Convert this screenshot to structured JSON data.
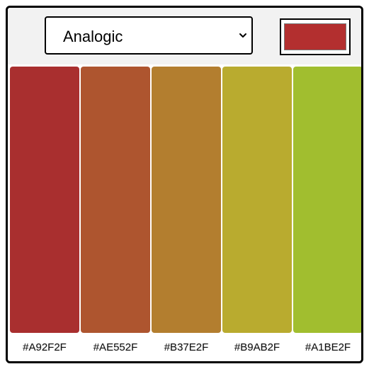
{
  "header": {
    "scheme_select": {
      "selected": "Analogic",
      "icon": "chevron-down-icon"
    },
    "base_color": "#B32F2F"
  },
  "palette": {
    "colors": [
      {
        "hex": "#A92F2F",
        "label": "#A92F2F"
      },
      {
        "hex": "#AE552F",
        "label": "#AE552F"
      },
      {
        "hex": "#B37E2F",
        "label": "#B37E2F"
      },
      {
        "hex": "#B9AB2F",
        "label": "#B9AB2F"
      },
      {
        "hex": "#A1BE2F",
        "label": "#A1BE2F"
      }
    ]
  }
}
